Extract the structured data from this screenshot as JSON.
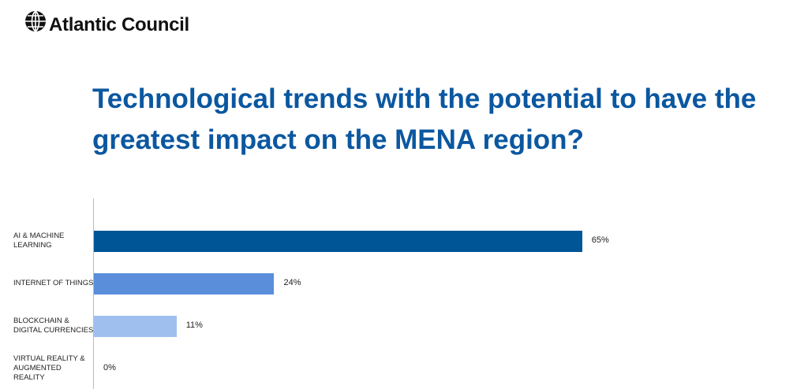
{
  "header": {
    "brand": "Atlantic Council"
  },
  "chart_data": {
    "type": "bar",
    "orientation": "horizontal",
    "title": "Technological trends with the potential to have the greatest impact on the MENA region?",
    "categories": [
      "AI & MACHINE LEARNING",
      "INTERNET OF THINGS",
      "BLOCKCHAIN & DIGITAL CURRENCIES",
      "VIRTUAL REALITY & AUGMENTED REALITY"
    ],
    "values": [
      65,
      24,
      11,
      0
    ],
    "value_labels": [
      "65%",
      "24%",
      "11%",
      "0%"
    ],
    "colors": [
      "#005596",
      "#5a8edb",
      "#9fc0ef",
      "#c9dbf6"
    ]
  }
}
